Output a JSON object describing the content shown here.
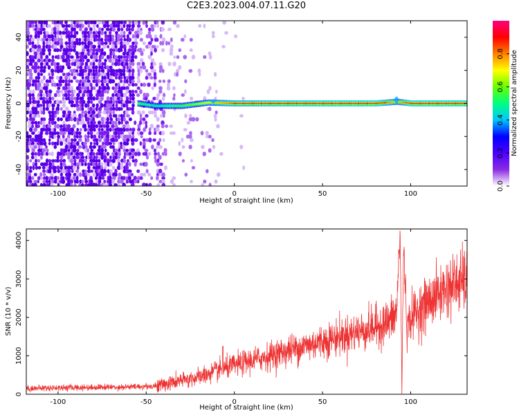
{
  "title": "C2E3.2023.004.07.11.G20",
  "chart_data": [
    {
      "type": "heatmap",
      "xlabel": "Height of straight line (km)",
      "ylabel": "Frequency (Hz)",
      "xlim": [
        -118,
        132
      ],
      "ylim": [
        -50,
        50
      ],
      "x_ticks": [
        -100,
        -50,
        0,
        50,
        100
      ],
      "y_ticks": [
        -40,
        -20,
        0,
        20,
        40
      ],
      "grid": false,
      "colorbar": {
        "label": "Normalized spectral amplitude",
        "range": [
          0,
          1
        ],
        "ticks": [
          0.0,
          0.2,
          0.4,
          0.6,
          0.8
        ],
        "tick_labels": [
          "0.0",
          "0.2",
          "0.4",
          "0.6",
          "0.8"
        ],
        "colormap": [
          "#ffffff",
          "#8a2be2",
          "#4b00ff",
          "#0000ff",
          "#00c8ff",
          "#00ff80",
          "#66ff00",
          "#ffff00",
          "#ff8000",
          "#ff0000",
          "#ff0080"
        ]
      },
      "ridge": {
        "description_freq_hz": 0,
        "trace": [
          {
            "x": -55,
            "freq": 0.0,
            "amp": 0.55
          },
          {
            "x": -45,
            "freq": -1.5,
            "amp": 0.45
          },
          {
            "x": -30,
            "freq": -1.5,
            "amp": 0.55
          },
          {
            "x": -15,
            "freq": 0.5,
            "amp": 0.7
          },
          {
            "x": 0,
            "freq": 0.0,
            "amp": 0.9
          },
          {
            "x": 20,
            "freq": 0.0,
            "amp": 0.95
          },
          {
            "x": 50,
            "freq": 0.0,
            "amp": 0.97
          },
          {
            "x": 80,
            "freq": 0.0,
            "amp": 0.98
          },
          {
            "x": 92,
            "freq": 1.0,
            "amp": 0.75
          },
          {
            "x": 100,
            "freq": 0.0,
            "amp": 0.98
          },
          {
            "x": 132,
            "freq": 0.0,
            "amp": 0.98
          }
        ]
      }
    },
    {
      "type": "line",
      "xlabel": "Height of straight line (km)",
      "ylabel": "SNR (10 * v/v)",
      "xlim": [
        -118,
        132
      ],
      "ylim": [
        0,
        4300
      ],
      "x_ticks": [
        -100,
        -50,
        0,
        50,
        100
      ],
      "y_ticks": [
        0,
        1000,
        2000,
        3000,
        4000
      ],
      "grid": false,
      "series": [
        {
          "color": "#ee3333",
          "x": [
            -118,
            -100,
            -80,
            -60,
            -45,
            -40,
            -30,
            -20,
            -10,
            0,
            10,
            20,
            30,
            40,
            50,
            60,
            70,
            80,
            88,
            92,
            94,
            95,
            96,
            98,
            100,
            110,
            120,
            132
          ],
          "y": [
            150,
            170,
            180,
            190,
            210,
            260,
            350,
            450,
            600,
            750,
            880,
            1000,
            1130,
            1260,
            1380,
            1500,
            1620,
            1750,
            1900,
            2100,
            4250,
            200,
            3850,
            1700,
            2000,
            2400,
            2750,
            3000
          ]
        }
      ]
    }
  ]
}
